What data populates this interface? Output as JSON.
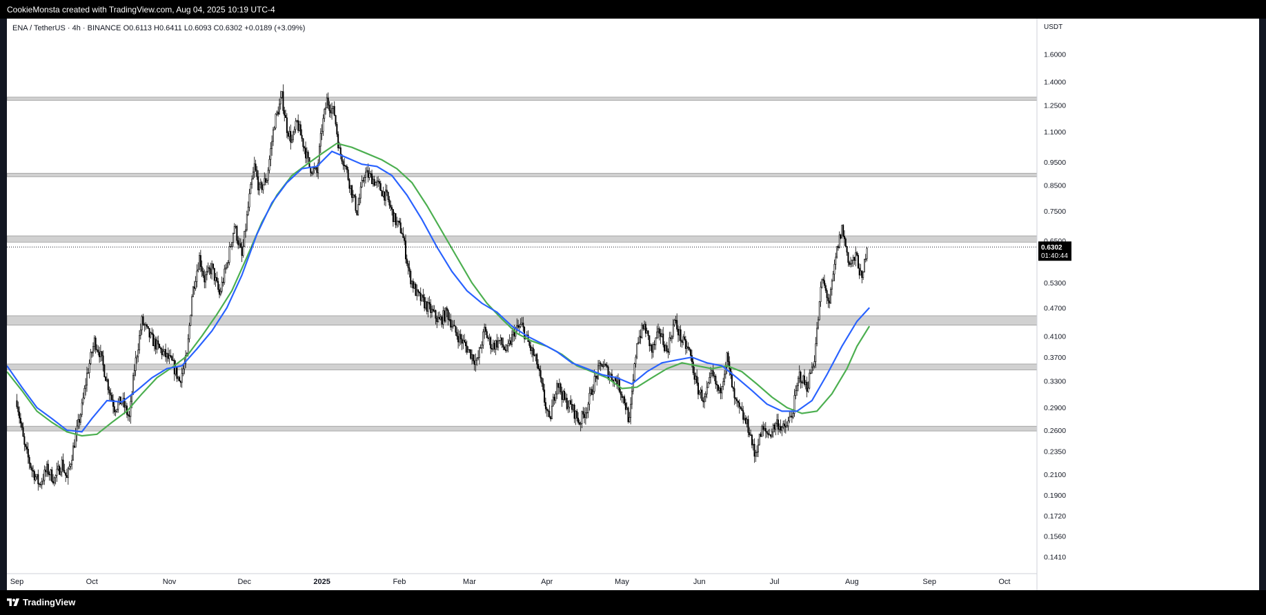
{
  "header": {
    "text": "CookieMonsta created with TradingView.com, Aug 04, 2025 10:19 UTC-4"
  },
  "footer": {
    "logo_text": "TradingView"
  },
  "chart_data": {
    "type": "candlestick",
    "legend": "ENA / TetherUS · 4h · BINANCE  O0.6113  H0.6411  L0.6093  C0.6302  +0.0189 (+3.09%)",
    "symbol": "ENA / TetherUS",
    "interval": "4h",
    "exchange": "BINANCE",
    "ohlc": {
      "open": 0.6113,
      "high": 0.6411,
      "low": 0.6093,
      "close": 0.6302,
      "change": 0.0189,
      "change_pct": 3.09
    },
    "currency_label": "USDT",
    "scale": "log",
    "ylim": [
      0.13,
      1.9
    ],
    "last_price_label": "0.6302",
    "countdown_label": "01:40:44",
    "y_ticks": [
      1.6,
      1.4,
      1.25,
      1.1,
      0.95,
      0.85,
      0.75,
      0.65,
      0.53,
      0.47,
      0.41,
      0.37,
      0.33,
      0.29,
      0.26,
      0.235,
      0.21,
      0.19,
      0.172,
      0.156,
      0.141
    ],
    "y_tick_labels": [
      "1.6000",
      "1.4000",
      "1.2500",
      "1.1000",
      "0.9500",
      "0.8500",
      "0.7500",
      "0.6500",
      "0.5300",
      "0.4700",
      "0.4100",
      "0.3700",
      "0.3300",
      "0.2900",
      "0.2600",
      "0.2350",
      "0.2100",
      "0.1900",
      "0.1720",
      "0.1560",
      "0.1410"
    ],
    "x_ticks": [
      {
        "day": 0,
        "label": "Sep"
      },
      {
        "day": 30,
        "label": "Oct"
      },
      {
        "day": 61,
        "label": "Nov"
      },
      {
        "day": 91,
        "label": "Dec"
      },
      {
        "day": 122,
        "label": "2025"
      },
      {
        "day": 153,
        "label": "Feb"
      },
      {
        "day": 181,
        "label": "Mar"
      },
      {
        "day": 212,
        "label": "Apr"
      },
      {
        "day": 242,
        "label": "May"
      },
      {
        "day": 273,
        "label": "Jun"
      },
      {
        "day": 303,
        "label": "Jul"
      },
      {
        "day": 334,
        "label": "Aug"
      },
      {
        "day": 365,
        "label": "Sep"
      },
      {
        "day": 395,
        "label": "Oct"
      }
    ],
    "xlim": [
      -4,
      408
    ],
    "zones": [
      {
        "low": 1.28,
        "high": 1.3
      },
      {
        "low": 0.885,
        "high": 0.9
      },
      {
        "low": 0.645,
        "high": 0.665
      },
      {
        "low": 0.432,
        "high": 0.452
      },
      {
        "low": 0.348,
        "high": 0.358
      },
      {
        "low": 0.259,
        "high": 0.265
      }
    ],
    "price_path": [
      [
        0,
        0.3
      ],
      [
        3,
        0.24
      ],
      [
        6,
        0.215
      ],
      [
        9,
        0.2
      ],
      [
        12,
        0.215
      ],
      [
        15,
        0.205
      ],
      [
        18,
        0.222
      ],
      [
        20,
        0.205
      ],
      [
        23,
        0.245
      ],
      [
        26,
        0.29
      ],
      [
        28,
        0.34
      ],
      [
        31,
        0.4
      ],
      [
        33,
        0.38
      ],
      [
        36,
        0.33
      ],
      [
        39,
        0.29
      ],
      [
        42,
        0.3
      ],
      [
        45,
        0.275
      ],
      [
        47,
        0.35
      ],
      [
        50,
        0.44
      ],
      [
        53,
        0.41
      ],
      [
        56,
        0.39
      ],
      [
        59,
        0.375
      ],
      [
        62,
        0.36
      ],
      [
        65,
        0.33
      ],
      [
        68,
        0.37
      ],
      [
        70,
        0.5
      ],
      [
        73,
        0.6
      ],
      [
        75,
        0.54
      ],
      [
        78,
        0.57
      ],
      [
        81,
        0.5
      ],
      [
        84,
        0.58
      ],
      [
        87,
        0.7
      ],
      [
        90,
        0.6
      ],
      [
        93,
        0.8
      ],
      [
        95,
        0.93
      ],
      [
        97,
        0.83
      ],
      [
        100,
        0.88
      ],
      [
        103,
        1.15
      ],
      [
        106,
        1.3
      ],
      [
        108,
        1.12
      ],
      [
        110,
        1.05
      ],
      [
        112,
        1.15
      ],
      [
        115,
        1.02
      ],
      [
        117,
        0.93
      ],
      [
        120,
        0.9
      ],
      [
        122,
        1.12
      ],
      [
        124,
        1.28
      ],
      [
        127,
        1.2
      ],
      [
        129,
        1.0
      ],
      [
        131,
        0.95
      ],
      [
        134,
        0.82
      ],
      [
        136,
        0.75
      ],
      [
        139,
        0.9
      ],
      [
        142,
        0.88
      ],
      [
        145,
        0.84
      ],
      [
        148,
        0.8
      ],
      [
        151,
        0.72
      ],
      [
        154,
        0.68
      ],
      [
        157,
        0.55
      ],
      [
        160,
        0.5
      ],
      [
        163,
        0.48
      ],
      [
        166,
        0.46
      ],
      [
        169,
        0.44
      ],
      [
        172,
        0.46
      ],
      [
        175,
        0.42
      ],
      [
        178,
        0.4
      ],
      [
        181,
        0.38
      ],
      [
        184,
        0.36
      ],
      [
        187,
        0.42
      ],
      [
        190,
        0.39
      ],
      [
        193,
        0.4
      ],
      [
        196,
        0.38
      ],
      [
        199,
        0.42
      ],
      [
        202,
        0.43
      ],
      [
        205,
        0.39
      ],
      [
        208,
        0.36
      ],
      [
        211,
        0.3
      ],
      [
        213,
        0.27
      ],
      [
        216,
        0.33
      ],
      [
        219,
        0.3
      ],
      [
        222,
        0.29
      ],
      [
        225,
        0.27
      ],
      [
        228,
        0.29
      ],
      [
        231,
        0.33
      ],
      [
        234,
        0.36
      ],
      [
        237,
        0.34
      ],
      [
        240,
        0.33
      ],
      [
        243,
        0.3
      ],
      [
        245,
        0.27
      ],
      [
        248,
        0.4
      ],
      [
        251,
        0.43
      ],
      [
        254,
        0.38
      ],
      [
        257,
        0.42
      ],
      [
        260,
        0.38
      ],
      [
        263,
        0.44
      ],
      [
        266,
        0.4
      ],
      [
        269,
        0.38
      ],
      [
        272,
        0.32
      ],
      [
        275,
        0.3
      ],
      [
        278,
        0.34
      ],
      [
        281,
        0.31
      ],
      [
        284,
        0.37
      ],
      [
        287,
        0.3
      ],
      [
        290,
        0.28
      ],
      [
        293,
        0.26
      ],
      [
        295,
        0.23
      ],
      [
        298,
        0.26
      ],
      [
        301,
        0.255
      ],
      [
        304,
        0.27
      ],
      [
        307,
        0.26
      ],
      [
        310,
        0.28
      ],
      [
        313,
        0.34
      ],
      [
        316,
        0.32
      ],
      [
        319,
        0.37
      ],
      [
        322,
        0.54
      ],
      [
        325,
        0.48
      ],
      [
        328,
        0.62
      ],
      [
        330,
        0.69
      ],
      [
        333,
        0.58
      ],
      [
        336,
        0.6
      ],
      [
        338,
        0.53
      ],
      [
        340,
        0.64
      ]
    ],
    "ema_fast": [
      [
        -4,
        0.355
      ],
      [
        2,
        0.32
      ],
      [
        8,
        0.29
      ],
      [
        14,
        0.275
      ],
      [
        20,
        0.26
      ],
      [
        26,
        0.258
      ],
      [
        30,
        0.275
      ],
      [
        36,
        0.3
      ],
      [
        42,
        0.298
      ],
      [
        48,
        0.315
      ],
      [
        54,
        0.335
      ],
      [
        60,
        0.35
      ],
      [
        66,
        0.355
      ],
      [
        72,
        0.385
      ],
      [
        78,
        0.42
      ],
      [
        84,
        0.47
      ],
      [
        90,
        0.55
      ],
      [
        96,
        0.67
      ],
      [
        102,
        0.78
      ],
      [
        108,
        0.86
      ],
      [
        114,
        0.92
      ],
      [
        120,
        0.93
      ],
      [
        126,
        1.0
      ],
      [
        132,
        0.97
      ],
      [
        138,
        0.94
      ],
      [
        144,
        0.93
      ],
      [
        150,
        0.89
      ],
      [
        156,
        0.81
      ],
      [
        162,
        0.72
      ],
      [
        168,
        0.63
      ],
      [
        174,
        0.56
      ],
      [
        180,
        0.51
      ],
      [
        186,
        0.48
      ],
      [
        192,
        0.46
      ],
      [
        198,
        0.43
      ],
      [
        204,
        0.41
      ],
      [
        210,
        0.395
      ],
      [
        216,
        0.38
      ],
      [
        222,
        0.36
      ],
      [
        228,
        0.35
      ],
      [
        234,
        0.34
      ],
      [
        240,
        0.335
      ],
      [
        246,
        0.325
      ],
      [
        252,
        0.345
      ],
      [
        258,
        0.36
      ],
      [
        264,
        0.365
      ],
      [
        270,
        0.37
      ],
      [
        276,
        0.36
      ],
      [
        282,
        0.355
      ],
      [
        288,
        0.335
      ],
      [
        294,
        0.315
      ],
      [
        300,
        0.295
      ],
      [
        306,
        0.285
      ],
      [
        312,
        0.285
      ],
      [
        318,
        0.3
      ],
      [
        324,
        0.34
      ],
      [
        330,
        0.39
      ],
      [
        336,
        0.44
      ],
      [
        341,
        0.47
      ]
    ],
    "ema_slow": [
      [
        -4,
        0.345
      ],
      [
        2,
        0.315
      ],
      [
        8,
        0.285
      ],
      [
        14,
        0.27
      ],
      [
        20,
        0.258
      ],
      [
        26,
        0.253
      ],
      [
        32,
        0.255
      ],
      [
        38,
        0.27
      ],
      [
        44,
        0.285
      ],
      [
        50,
        0.31
      ],
      [
        56,
        0.335
      ],
      [
        62,
        0.352
      ],
      [
        68,
        0.372
      ],
      [
        74,
        0.41
      ],
      [
        80,
        0.455
      ],
      [
        86,
        0.51
      ],
      [
        92,
        0.6
      ],
      [
        98,
        0.71
      ],
      [
        104,
        0.81
      ],
      [
        110,
        0.89
      ],
      [
        116,
        0.94
      ],
      [
        122,
        0.99
      ],
      [
        128,
        1.04
      ],
      [
        134,
        1.02
      ],
      [
        140,
        0.99
      ],
      [
        146,
        0.96
      ],
      [
        152,
        0.92
      ],
      [
        158,
        0.86
      ],
      [
        164,
        0.77
      ],
      [
        170,
        0.68
      ],
      [
        176,
        0.6
      ],
      [
        182,
        0.53
      ],
      [
        188,
        0.48
      ],
      [
        194,
        0.445
      ],
      [
        200,
        0.415
      ],
      [
        206,
        0.4
      ],
      [
        212,
        0.39
      ],
      [
        218,
        0.375
      ],
      [
        224,
        0.355
      ],
      [
        230,
        0.345
      ],
      [
        236,
        0.335
      ],
      [
        242,
        0.318
      ],
      [
        248,
        0.32
      ],
      [
        254,
        0.335
      ],
      [
        260,
        0.35
      ],
      [
        266,
        0.36
      ],
      [
        272,
        0.355
      ],
      [
        278,
        0.35
      ],
      [
        284,
        0.355
      ],
      [
        290,
        0.345
      ],
      [
        296,
        0.325
      ],
      [
        302,
        0.305
      ],
      [
        308,
        0.29
      ],
      [
        314,
        0.282
      ],
      [
        320,
        0.285
      ],
      [
        326,
        0.31
      ],
      [
        332,
        0.35
      ],
      [
        336,
        0.39
      ],
      [
        341,
        0.43
      ]
    ],
    "colors": {
      "ema_fast": "#2962ff",
      "ema_slow": "#4caf50",
      "candles": "#000000",
      "zones": "#d1d1d1"
    }
  }
}
